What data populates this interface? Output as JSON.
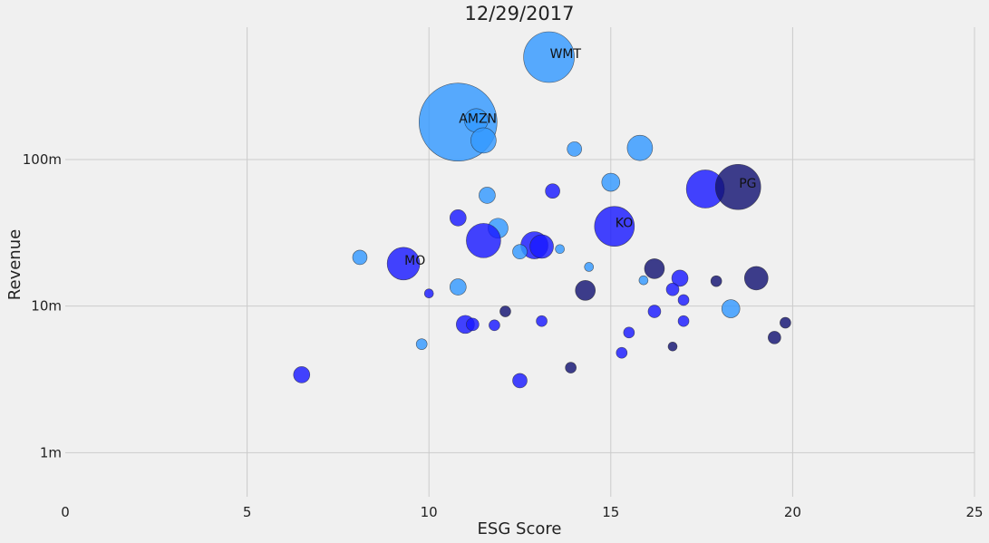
{
  "chart_data": {
    "type": "scatter",
    "title": "12/29/2017",
    "xlabel": "ESG Score",
    "ylabel": "Revenue",
    "xlim": [
      0,
      25
    ],
    "x_ticks": [
      0,
      5,
      10,
      15,
      20,
      25
    ],
    "x_tick_labels": [
      "0",
      "5",
      "10",
      "15",
      "20",
      "25"
    ],
    "y_scale": "log",
    "ylim": [
      0.5,
      800
    ],
    "y_ticks": [
      1,
      10,
      100
    ],
    "y_tick_labels": [
      "1m",
      "10m",
      "100m"
    ],
    "grid": true,
    "colors": {
      "light": "#3399ff",
      "medium": "#1a1aff",
      "dark": "#141473"
    },
    "points": [
      {
        "x": 13.3,
        "y": 500,
        "size": 28,
        "color": "light",
        "label": "WMT"
      },
      {
        "x": 10.8,
        "y": 180,
        "size": 43,
        "color": "light",
        "label": "AMZN"
      },
      {
        "x": 11.3,
        "y": 185,
        "size": 13,
        "color": "light",
        "label": ""
      },
      {
        "x": 11.5,
        "y": 135,
        "size": 14,
        "color": "light",
        "label": ""
      },
      {
        "x": 14.0,
        "y": 118,
        "size": 8,
        "color": "light",
        "label": ""
      },
      {
        "x": 15.8,
        "y": 120,
        "size": 14,
        "color": "light",
        "label": ""
      },
      {
        "x": 15.0,
        "y": 70,
        "size": 10,
        "color": "light",
        "label": ""
      },
      {
        "x": 17.6,
        "y": 63,
        "size": 21,
        "color": "medium",
        "label": ""
      },
      {
        "x": 18.5,
        "y": 65,
        "size": 25,
        "color": "dark",
        "label": "PG"
      },
      {
        "x": 13.4,
        "y": 61,
        "size": 8,
        "color": "medium",
        "label": ""
      },
      {
        "x": 11.6,
        "y": 57,
        "size": 9,
        "color": "light",
        "label": ""
      },
      {
        "x": 10.8,
        "y": 40,
        "size": 9,
        "color": "medium",
        "label": ""
      },
      {
        "x": 15.1,
        "y": 35,
        "size": 22,
        "color": "medium",
        "label": "KO"
      },
      {
        "x": 11.9,
        "y": 34,
        "size": 11,
        "color": "light",
        "label": ""
      },
      {
        "x": 11.5,
        "y": 28,
        "size": 19,
        "color": "medium",
        "label": ""
      },
      {
        "x": 12.9,
        "y": 26,
        "size": 15,
        "color": "medium",
        "label": ""
      },
      {
        "x": 13.1,
        "y": 25.5,
        "size": 13,
        "color": "medium",
        "label": ""
      },
      {
        "x": 12.5,
        "y": 23.5,
        "size": 8,
        "color": "light",
        "label": ""
      },
      {
        "x": 13.6,
        "y": 24.5,
        "size": 5,
        "color": "light",
        "label": ""
      },
      {
        "x": 8.1,
        "y": 21.5,
        "size": 8,
        "color": "light",
        "label": ""
      },
      {
        "x": 9.3,
        "y": 19.5,
        "size": 18,
        "color": "medium",
        "label": "MO"
      },
      {
        "x": 14.4,
        "y": 18.5,
        "size": 5,
        "color": "light",
        "label": ""
      },
      {
        "x": 16.2,
        "y": 18,
        "size": 11,
        "color": "dark",
        "label": ""
      },
      {
        "x": 16.9,
        "y": 15.5,
        "size": 9,
        "color": "medium",
        "label": ""
      },
      {
        "x": 15.9,
        "y": 15,
        "size": 5,
        "color": "light",
        "label": ""
      },
      {
        "x": 17.9,
        "y": 14.8,
        "size": 6,
        "color": "dark",
        "label": ""
      },
      {
        "x": 19.0,
        "y": 15.5,
        "size": 13,
        "color": "dark",
        "label": ""
      },
      {
        "x": 10.8,
        "y": 13.5,
        "size": 9,
        "color": "light",
        "label": ""
      },
      {
        "x": 14.3,
        "y": 12.8,
        "size": 11,
        "color": "dark",
        "label": ""
      },
      {
        "x": 16.7,
        "y": 13,
        "size": 7,
        "color": "medium",
        "label": ""
      },
      {
        "x": 10.0,
        "y": 12.2,
        "size": 5,
        "color": "medium",
        "label": ""
      },
      {
        "x": 17.0,
        "y": 11,
        "size": 6,
        "color": "medium",
        "label": ""
      },
      {
        "x": 18.3,
        "y": 9.6,
        "size": 10,
        "color": "light",
        "label": ""
      },
      {
        "x": 12.1,
        "y": 9.2,
        "size": 6,
        "color": "dark",
        "label": ""
      },
      {
        "x": 16.2,
        "y": 9.2,
        "size": 7,
        "color": "medium",
        "label": ""
      },
      {
        "x": 11.0,
        "y": 7.5,
        "size": 10,
        "color": "medium",
        "label": ""
      },
      {
        "x": 11.2,
        "y": 7.5,
        "size": 7,
        "color": "medium",
        "label": ""
      },
      {
        "x": 11.8,
        "y": 7.4,
        "size": 6,
        "color": "medium",
        "label": ""
      },
      {
        "x": 13.1,
        "y": 7.9,
        "size": 6,
        "color": "medium",
        "label": ""
      },
      {
        "x": 17.0,
        "y": 7.9,
        "size": 6,
        "color": "medium",
        "label": ""
      },
      {
        "x": 19.8,
        "y": 7.7,
        "size": 6,
        "color": "dark",
        "label": ""
      },
      {
        "x": 15.5,
        "y": 6.6,
        "size": 6,
        "color": "medium",
        "label": ""
      },
      {
        "x": 19.5,
        "y": 6.1,
        "size": 7,
        "color": "dark",
        "label": ""
      },
      {
        "x": 9.8,
        "y": 5.5,
        "size": 6,
        "color": "light",
        "label": ""
      },
      {
        "x": 16.7,
        "y": 5.3,
        "size": 5,
        "color": "dark",
        "label": ""
      },
      {
        "x": 15.3,
        "y": 4.8,
        "size": 6,
        "color": "medium",
        "label": ""
      },
      {
        "x": 13.9,
        "y": 3.8,
        "size": 6,
        "color": "dark",
        "label": ""
      },
      {
        "x": 6.5,
        "y": 3.4,
        "size": 9,
        "color": "medium",
        "label": ""
      },
      {
        "x": 12.5,
        "y": 3.1,
        "size": 8,
        "color": "medium",
        "label": ""
      }
    ]
  }
}
